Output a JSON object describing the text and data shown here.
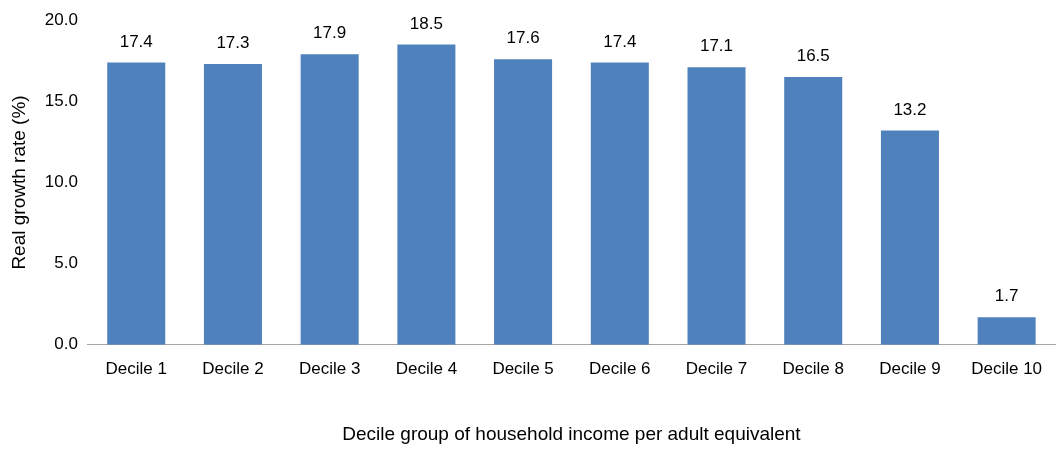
{
  "chart_data": {
    "type": "bar",
    "xlabel": "Decile group of household income per adult equivalent",
    "ylabel": "Real growth rate (%)",
    "categories": [
      "Decile 1",
      "Decile 2",
      "Decile 3",
      "Decile 4",
      "Decile 5",
      "Decile 6",
      "Decile 7",
      "Decile 8",
      "Decile 9",
      "Decile 10"
    ],
    "values": [
      17.4,
      17.3,
      17.9,
      18.5,
      17.6,
      17.4,
      17.1,
      16.5,
      13.2,
      1.7
    ],
    "color": "#4f81bd",
    "ylim": [
      0,
      20
    ],
    "yticks": [
      {
        "value": 0,
        "label": "0.0"
      },
      {
        "value": 5,
        "label": "5.0"
      },
      {
        "value": 10,
        "label": "10.0"
      },
      {
        "value": 15,
        "label": "15.0"
      },
      {
        "value": 20,
        "label": "20.0"
      }
    ],
    "grid": false,
    "legend": false,
    "data_labels": true
  }
}
